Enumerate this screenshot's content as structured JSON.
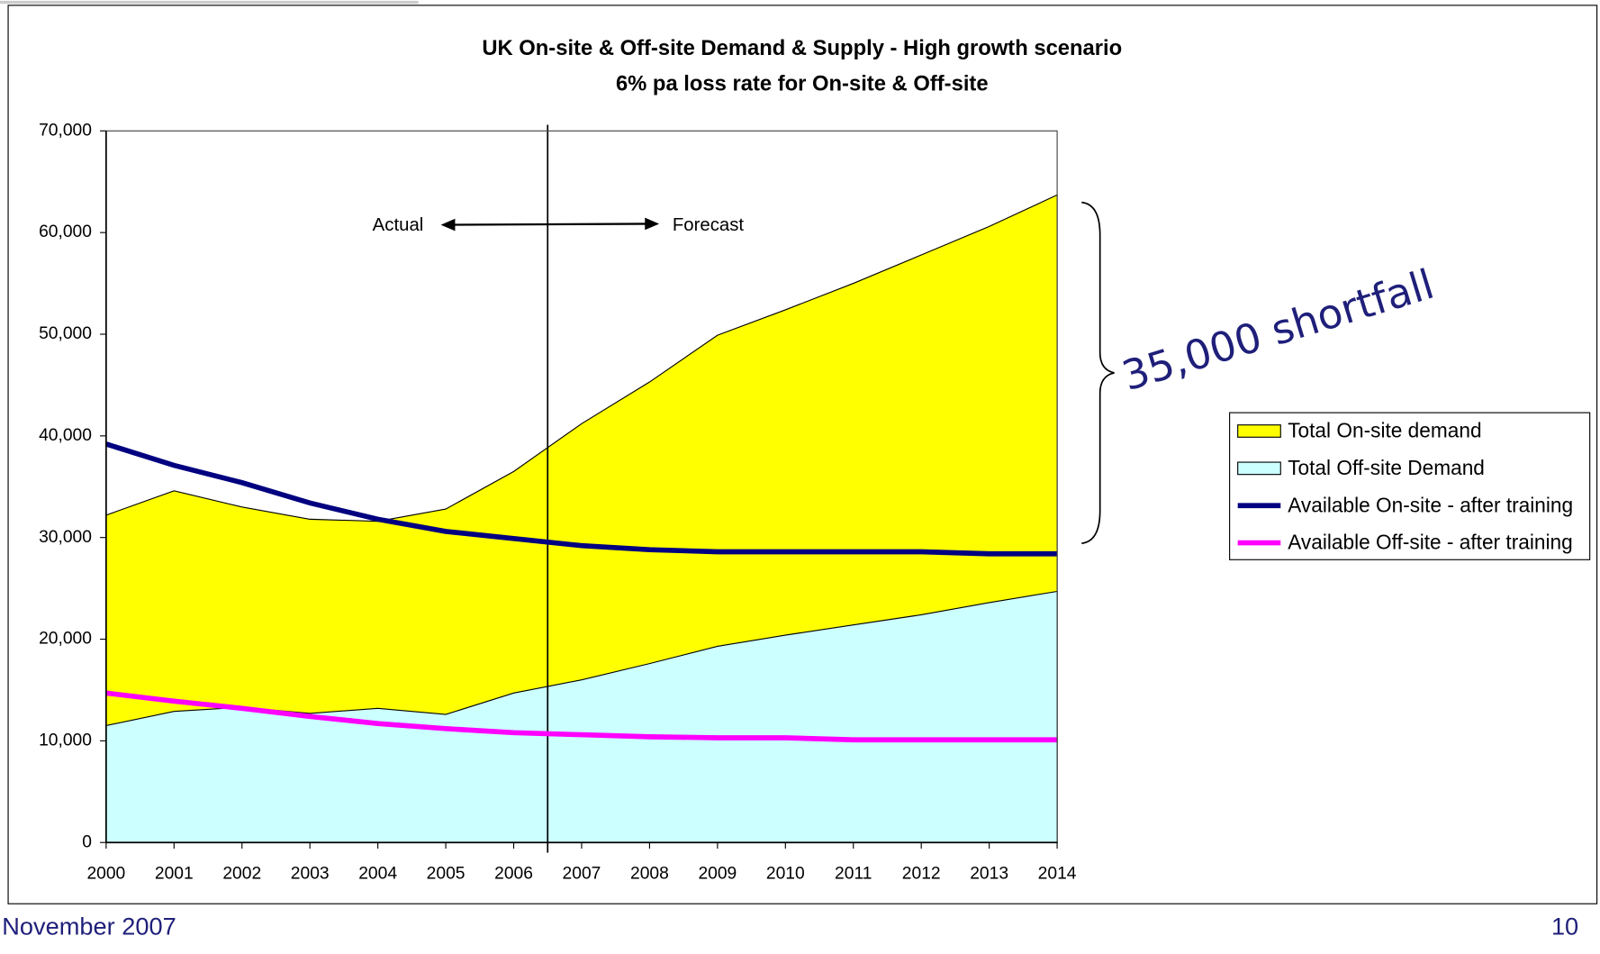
{
  "chart_data": {
    "type": "area",
    "title": "UK On-site & Off-site Demand & Supply - High growth scenario",
    "subtitle": "6% pa loss rate for On-site & Off-site",
    "categories": [
      "2000",
      "2001",
      "2002",
      "2003",
      "2004",
      "2005",
      "2006",
      "2007",
      "2008",
      "2009",
      "2010",
      "2011",
      "2012",
      "2013",
      "2014"
    ],
    "series": [
      {
        "name": "Total On-site demand",
        "type": "area",
        "color": "#ffff00",
        "values": [
          32200,
          34600,
          33000,
          31800,
          31600,
          32800,
          36500,
          41200,
          45300,
          49900,
          52400,
          55000,
          57800,
          60600,
          63700
        ]
      },
      {
        "name": "Total Off-site Demand",
        "type": "area",
        "color": "#ccffff",
        "values": [
          11500,
          12900,
          13300,
          12700,
          13200,
          12600,
          14700,
          16000,
          17600,
          19300,
          20400,
          21400,
          22400,
          23600,
          24700
        ]
      },
      {
        "name": "Available On-site - after training",
        "type": "line",
        "color": "#000080",
        "values": [
          39200,
          37100,
          35400,
          33400,
          31800,
          30600,
          29900,
          29200,
          28800,
          28600,
          28600,
          28600,
          28600,
          28400,
          28400
        ]
      },
      {
        "name": "Available Off-site - after training",
        "type": "line",
        "color": "#ff00ff",
        "values": [
          14700,
          13900,
          13200,
          12400,
          11700,
          11200,
          10800,
          10600,
          10400,
          10300,
          10300,
          10100,
          10100,
          10100,
          10100
        ]
      }
    ],
    "ylim": [
      0,
      70000
    ],
    "yticks": [
      0,
      {
        "value": 10000,
        "label": "10,000"
      },
      {
        "value": 20000,
        "label": "20,000"
      },
      {
        "value": 30000,
        "label": "30,000"
      },
      {
        "value": 40000,
        "label": "40,000"
      },
      {
        "value": 50000,
        "label": "50,000"
      },
      {
        "value": 60000,
        "label": "60,000"
      },
      {
        "value": 70000,
        "label": "70,000"
      }
    ],
    "annotations": {
      "actual": "Actual",
      "forecast": "Forecast",
      "shortfall": "35,000 shortfall"
    },
    "legend": "right"
  },
  "footer": {
    "date": "November 2007",
    "page": "10"
  }
}
